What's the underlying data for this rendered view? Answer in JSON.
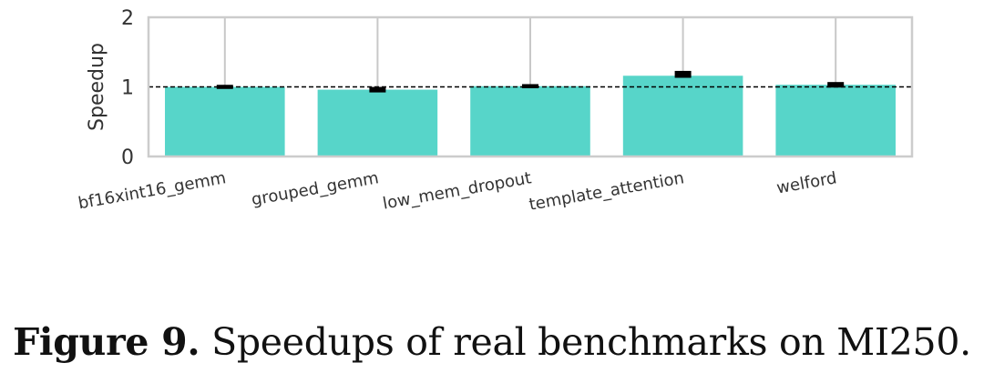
{
  "chart_data": {
    "type": "bar",
    "categories": [
      "bf16xint16_gemm",
      "grouped_gemm",
      "low_mem_dropout",
      "template_attention",
      "welford"
    ],
    "values": [
      1.0,
      0.96,
      1.01,
      1.16,
      1.03
    ],
    "error_low": [
      0.99,
      0.94,
      1.0,
      1.15,
      1.01
    ],
    "error_high": [
      1.01,
      0.98,
      1.02,
      1.21,
      1.05
    ],
    "whisker_high": [
      2,
      2,
      2,
      2,
      2
    ],
    "ylabel": "Speedup",
    "xlabel": "",
    "ylim": [
      0,
      2
    ],
    "yticks": [
      0,
      1,
      2
    ],
    "reference_line": 1,
    "bar_color": "#57d5c9",
    "error_color": "#000000",
    "whisker_color": "#c8c8c8",
    "grid": false
  },
  "caption": {
    "figure_number": "Figure 9.",
    "text": "Speedups of real benchmarks on MI250."
  }
}
